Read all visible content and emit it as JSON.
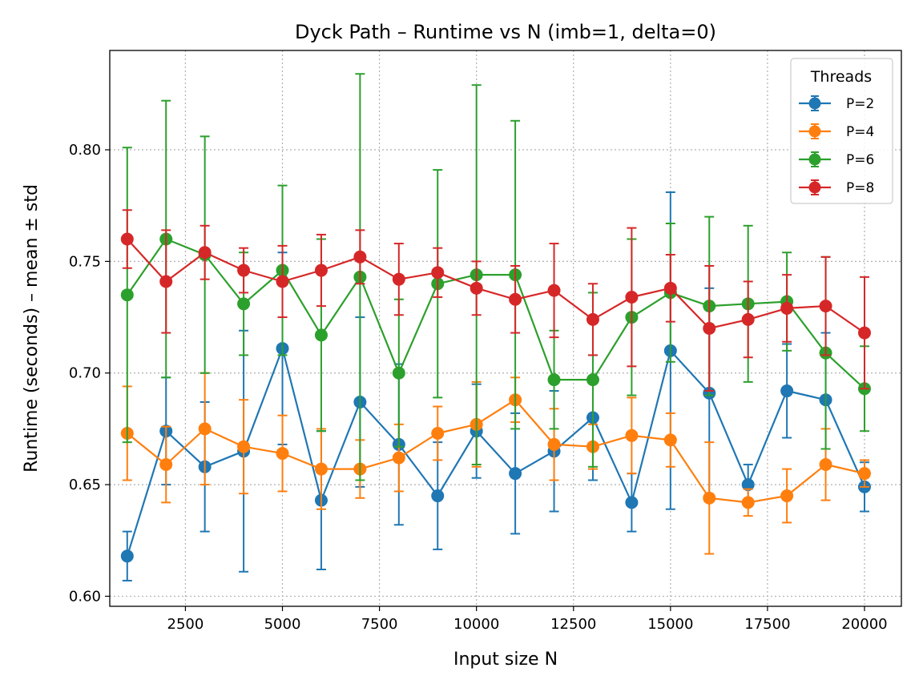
{
  "chart_data": {
    "type": "line",
    "title": "Dyck Path – Runtime vs N (imb=1, delta=0)",
    "xlabel": "Input size N",
    "ylabel": "Runtime (seconds) – mean ± std",
    "xlim": [
      550,
      20950
    ],
    "ylim": [
      0.5955,
      0.8445
    ],
    "xticks": [
      2500,
      5000,
      7500,
      10000,
      12500,
      15000,
      17500,
      20000
    ],
    "yticks": [
      0.6,
      0.65,
      0.7,
      0.75,
      0.8
    ],
    "grid": true,
    "legend": {
      "title": "Threads",
      "position": "top-right"
    },
    "x": [
      1000,
      2000,
      3000,
      4000,
      5000,
      6000,
      7000,
      8000,
      9000,
      10000,
      11000,
      12000,
      13000,
      14000,
      15000,
      16000,
      17000,
      18000,
      19000,
      20000
    ],
    "series": [
      {
        "name": "P=2",
        "color": "#1f77b4",
        "values": [
          0.618,
          0.674,
          0.658,
          0.665,
          0.711,
          0.643,
          0.687,
          0.668,
          0.645,
          0.674,
          0.655,
          0.665,
          0.68,
          0.642,
          0.71,
          0.691,
          0.65,
          0.692,
          0.688,
          0.649
        ],
        "std": [
          0.011,
          0.024,
          0.029,
          0.054,
          0.043,
          0.031,
          0.038,
          0.036,
          0.024,
          0.021,
          0.027,
          0.027,
          0.028,
          0.013,
          0.071,
          0.047,
          0.009,
          0.021,
          0.03,
          0.011
        ]
      },
      {
        "name": "P=4",
        "color": "#ff7f0e",
        "values": [
          0.673,
          0.659,
          0.675,
          0.667,
          0.664,
          0.657,
          0.657,
          0.662,
          0.673,
          0.677,
          0.688,
          0.668,
          0.667,
          0.672,
          0.67,
          0.644,
          0.642,
          0.645,
          0.659,
          0.655
        ],
        "std": [
          0.021,
          0.017,
          0.025,
          0.021,
          0.017,
          0.018,
          0.013,
          0.015,
          0.012,
          0.019,
          0.01,
          0.016,
          0.01,
          0.017,
          0.012,
          0.025,
          0.006,
          0.012,
          0.016,
          0.006
        ]
      },
      {
        "name": "P=6",
        "color": "#2ca02c",
        "values": [
          0.735,
          0.76,
          0.753,
          0.731,
          0.746,
          0.717,
          0.743,
          0.7,
          0.74,
          0.744,
          0.744,
          0.697,
          0.697,
          0.725,
          0.736,
          0.73,
          0.731,
          0.732,
          0.709,
          0.693
        ],
        "std": [
          0.066,
          0.062,
          0.053,
          0.023,
          0.038,
          0.043,
          0.091,
          0.033,
          0.051,
          0.085,
          0.069,
          0.022,
          0.039,
          0.035,
          0.031,
          0.04,
          0.035,
          0.022,
          0.043,
          0.019
        ]
      },
      {
        "name": "P=8",
        "color": "#d62728",
        "values": [
          0.76,
          0.741,
          0.754,
          0.746,
          0.741,
          0.746,
          0.752,
          0.742,
          0.745,
          0.738,
          0.733,
          0.737,
          0.724,
          0.734,
          0.738,
          0.72,
          0.724,
          0.729,
          0.73,
          0.718
        ],
        "std": [
          0.013,
          0.023,
          0.012,
          0.01,
          0.016,
          0.016,
          0.012,
          0.016,
          0.011,
          0.012,
          0.015,
          0.021,
          0.016,
          0.031,
          0.015,
          0.028,
          0.017,
          0.015,
          0.022,
          0.025
        ]
      }
    ]
  }
}
